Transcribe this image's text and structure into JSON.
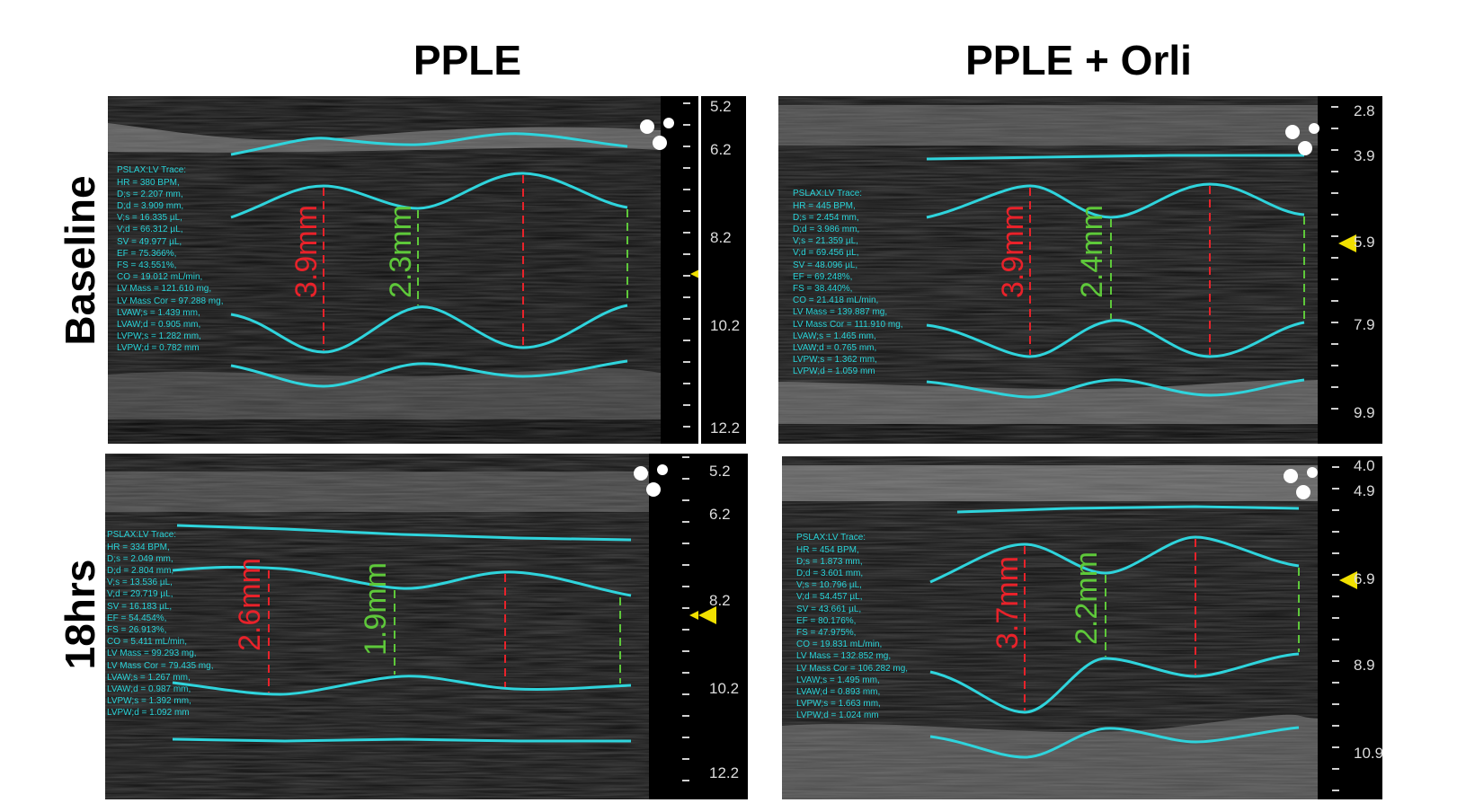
{
  "columns": [
    "PPLE",
    "PPLE + Orli"
  ],
  "rows": [
    "Baseline",
    "18hrs"
  ],
  "panels": [
    {
      "id": "pple-baseline",
      "stats": [
        "PSLAX:LV Trace:",
        "HR = 380 BPM,",
        "D;s = 2.207 mm,",
        "D;d = 3.909 mm,",
        "V;s = 16.335 µL,",
        "V;d = 66.312 µL,",
        "SV = 49.977 µL,",
        "EF = 75.366%,",
        "FS = 43.551%,",
        "CO = 19.012 mL/min,",
        "LV Mass = 121.610 mg,",
        "LV Mass Cor = 97.288 mg,",
        "LVAW;s = 1.439 mm,",
        "LVAW;d = 0.905 mm,",
        "LVPW;s = 1.282 mm,",
        "LVPW;d = 0.782 mm"
      ],
      "scale": [
        "5.2",
        "6.2",
        "8.2",
        "10.2",
        "12.2"
      ],
      "red_label": "3.9mm",
      "green_label": "2.3mm"
    },
    {
      "id": "orli-baseline",
      "stats": [
        "PSLAX:LV Trace:",
        "HR = 445 BPM,",
        "D;s = 2.454 mm,",
        "D;d = 3.986 mm,",
        "V;s = 21.359 µL,",
        "V;d = 69.456 µL,",
        "SV = 48.096 µL,",
        "EF = 69.248%,",
        "FS = 38.440%,",
        "CO = 21.418 mL/min,",
        "LV Mass = 139.887 mg,",
        "LV Mass Cor = 111.910 mg,",
        "LVAW;s = 1.465 mm,",
        "LVAW;d = 0.765 mm,",
        "LVPW;s = 1.362 mm,",
        "LVPW;d = 1.059 mm"
      ],
      "scale": [
        "2.8",
        "3.9",
        "5.9",
        "7.9",
        "9.9"
      ],
      "red_label": "3.9mm",
      "green_label": "2.4mm"
    },
    {
      "id": "pple-18hrs",
      "stats": [
        "PSLAX:LV Trace:",
        "HR = 334 BPM,",
        "D;s = 2.049 mm,",
        "D;d = 2.804 mm,",
        "V;s = 13.536 µL,",
        "V;d = 29.719 µL,",
        "SV = 16.183 µL,",
        "EF = 54.454%,",
        "FS = 26.913%,",
        "CO = 5.411 mL/min,",
        "LV Mass = 99.293 mg,",
        "LV Mass Cor = 79.435 mg,",
        "LVAW;s = 1.267 mm,",
        "LVAW;d = 0.987 mm,",
        "LVPW;s = 1.392 mm,",
        "LVPW;d = 1.092 mm"
      ],
      "scale": [
        "5.2",
        "6.2",
        "8.2",
        "10.2",
        "12.2"
      ],
      "red_label": "2.6mm",
      "green_label": "1.9mm"
    },
    {
      "id": "orli-18hrs",
      "stats": [
        "PSLAX:LV Trace:",
        "HR = 454 BPM,",
        "D;s = 1.873 mm,",
        "D;d = 3.601 mm,",
        "V;s = 10.796 µL,",
        "V;d = 54.457 µL,",
        "SV = 43.661 µL,",
        "EF = 80.176%,",
        "FS = 47.975%,",
        "CO = 19.831 mL/min,",
        "LV Mass = 132.852 mg,",
        "LV Mass Cor = 106.282 mg,",
        "LVAW;s = 1.495 mm,",
        "LVAW;d = 0.893 mm,",
        "LVPW;s = 1.663 mm,",
        "LVPW;d = 1.024 mm"
      ],
      "scale": [
        "4.0",
        "4.9",
        "6.9",
        "8.9",
        "10.9"
      ],
      "red_label": "3.7mm",
      "green_label": "2.2mm"
    }
  ],
  "colors": {
    "trace": "#2fd4dc",
    "red_measure": "#e8222a",
    "green_measure": "#5ec83a",
    "marker": "#f0e000"
  }
}
